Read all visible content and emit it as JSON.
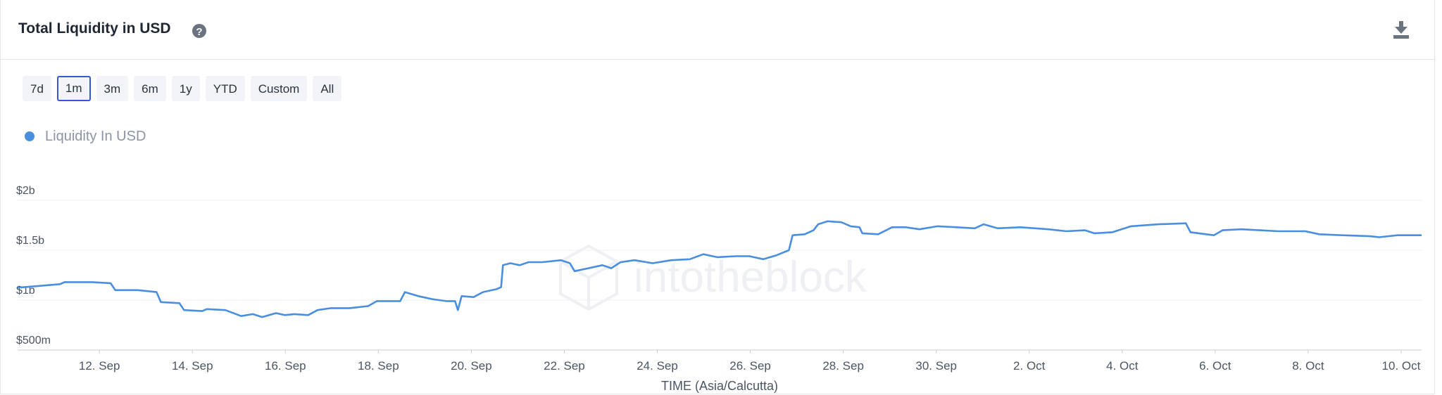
{
  "header": {
    "title": "Total Liquidity in USD"
  },
  "buttons": [
    "7d",
    "1m",
    "3m",
    "6m",
    "1y",
    "YTD",
    "Custom",
    "All"
  ],
  "selected_button": 1,
  "chart_data": {
    "type": "line",
    "watermark": "intotheblock",
    "x_label": "TIME (Asia/Calcutta)",
    "grid": true,
    "series": [
      {
        "name": "Liquidity In USD",
        "color": "#4a8fdf",
        "values": [
          1125000000.0,
          1140000000.0,
          1160000000.0,
          1180000000.0,
          1180000000.0,
          1170000000.0,
          1100000000.0,
          1100000000.0,
          1080000000.0,
          980000000.0,
          970000000.0,
          900000000.0,
          890000000.0,
          910000000.0,
          900000000.0,
          840000000.0,
          860000000.0,
          830000000.0,
          870000000.0,
          850000000.0,
          860000000.0,
          850000000.0,
          900000000.0,
          920000000.0,
          920000000.0,
          940000000.0,
          990000000.0,
          990000000.0,
          1080000000.0,
          1040000000.0,
          1010000000.0,
          990000000.0,
          990000000.0,
          900000000.0,
          1040000000.0,
          1030000000.0,
          1080000000.0,
          1110000000.0,
          1130000000.0,
          1350000000.0,
          1370000000.0,
          1350000000.0,
          1380000000.0,
          1380000000.0,
          1400000000.0,
          1370000000.0,
          1290000000.0,
          1320000000.0,
          1350000000.0,
          1320000000.0,
          1380000000.0,
          1400000000.0,
          1370000000.0,
          1400000000.0,
          1410000000.0,
          1460000000.0,
          1430000000.0,
          1440000000.0,
          1440000000.0,
          1410000000.0,
          1450000000.0,
          1470000000.0,
          1500000000.0,
          1650000000.0,
          1660000000.0,
          1700000000.0,
          1760000000.0,
          1790000000.0,
          1780000000.0,
          1740000000.0,
          1730000000.0,
          1670000000.0,
          1660000000.0,
          1730000000.0,
          1730000000.0,
          1710000000.0,
          1740000000.0,
          1730000000.0,
          1720000000.0,
          1760000000.0,
          1720000000.0,
          1730000000.0,
          1710000000.0,
          1690000000.0,
          1700000000.0,
          1670000000.0,
          1680000000.0,
          1740000000.0,
          1760000000.0,
          1770000000.0,
          1680000000.0,
          1650000000.0,
          1700000000.0,
          1710000000.0,
          1700000000.0,
          1690000000.0,
          1690000000.0,
          1660000000.0,
          1650000000.0,
          1640000000.0,
          1630000000.0,
          1650000000.0,
          1650000000.0
        ]
      }
    ],
    "x": [
      10.24,
      10.66,
      11.15,
      11.25,
      11.84,
      12.24,
      12.34,
      12.83,
      13.23,
      13.32,
      13.72,
      13.82,
      14.21,
      14.31,
      14.71,
      15.05,
      15.3,
      15.5,
      15.8,
      15.99,
      16.19,
      16.49,
      16.69,
      16.98,
      17.38,
      17.78,
      17.97,
      18.47,
      18.57,
      18.86,
      19.16,
      19.46,
      19.65,
      19.71,
      19.79,
      20.05,
      20.25,
      20.54,
      20.64,
      20.68,
      20.84,
      21.04,
      21.23,
      21.53,
      21.93,
      22.12,
      22.22,
      22.52,
      22.82,
      23.01,
      23.21,
      23.51,
      23.9,
      24.3,
      24.7,
      24.99,
      25.29,
      25.69,
      25.98,
      26.28,
      26.57,
      26.67,
      26.83,
      26.91,
      27.17,
      27.36,
      27.46,
      27.66,
      27.96,
      28.16,
      28.35,
      28.41,
      28.75,
      29.05,
      29.34,
      29.64,
      30.03,
      30.43,
      30.83,
      31.02,
      31.32,
      31.81,
      32.41,
      32.8,
      33.2,
      33.4,
      33.79,
      34.19,
      34.78,
      35.37,
      35.47,
      35.97,
      36.16,
      36.56,
      36.96,
      37.35,
      37.94,
      38.24,
      38.74,
      39.33,
      39.53,
      39.92,
      40.44
    ],
    "xlim": [
      10.24,
      40.44
    ],
    "xticks": [
      {
        "value": 12,
        "label": "12. Sep"
      },
      {
        "value": 14,
        "label": "14. Sep"
      },
      {
        "value": 16,
        "label": "16. Sep"
      },
      {
        "value": 18,
        "label": "18. Sep"
      },
      {
        "value": 20,
        "label": "20. Sep"
      },
      {
        "value": 22,
        "label": "22. Sep"
      },
      {
        "value": 24,
        "label": "24. Sep"
      },
      {
        "value": 26,
        "label": "26. Sep"
      },
      {
        "value": 28,
        "label": "28. Sep"
      },
      {
        "value": 30,
        "label": "30. Sep"
      },
      {
        "value": 32,
        "label": "2. Oct"
      },
      {
        "value": 34,
        "label": "4. Oct"
      },
      {
        "value": 36,
        "label": "6. Oct"
      },
      {
        "value": 38,
        "label": "8. Oct"
      },
      {
        "value": 40,
        "label": "10. Oct"
      }
    ],
    "ylim": [
      500000000,
      2000000000
    ],
    "yticks": [
      {
        "value": 500000000,
        "label": "$500m"
      },
      {
        "value": 1000000000,
        "label": "$1b"
      },
      {
        "value": 1500000000,
        "label": "$1.5b"
      },
      {
        "value": 2000000000,
        "label": "$2b"
      }
    ]
  }
}
